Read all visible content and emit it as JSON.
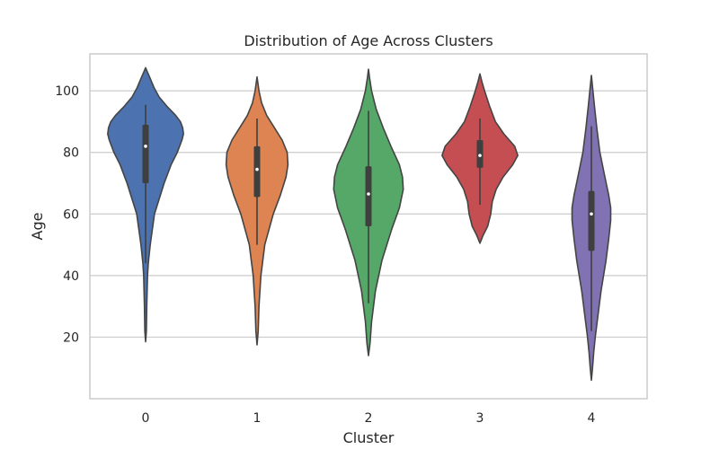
{
  "chart_data": {
    "type": "violin",
    "title": "Distribution of Age Across Clusters",
    "xlabel": "Cluster",
    "ylabel": "Age",
    "categories": [
      "0",
      "1",
      "2",
      "3",
      "4"
    ],
    "ylim": [
      0,
      112
    ],
    "yticks": [
      20,
      40,
      60,
      80,
      100
    ],
    "grid": true,
    "legend": "none",
    "violins": [
      {
        "category": "0",
        "color": "#4c72b0",
        "kde_min": 18.5,
        "kde_max": 107.5,
        "whisker_low": 44,
        "q1": 70,
        "median": 82,
        "q3": 89,
        "whisker_high": 95.5,
        "profile": [
          [
            18.5,
            0
          ],
          [
            22,
            0.02
          ],
          [
            30,
            0.03
          ],
          [
            40,
            0.05
          ],
          [
            44,
            0.07
          ],
          [
            50,
            0.12
          ],
          [
            60,
            0.23
          ],
          [
            70,
            0.48
          ],
          [
            76,
            0.66
          ],
          [
            80,
            0.82
          ],
          [
            84,
            0.94
          ],
          [
            86,
            0.98
          ],
          [
            88,
            0.96
          ],
          [
            90,
            0.9
          ],
          [
            92,
            0.78
          ],
          [
            95,
            0.55
          ],
          [
            98,
            0.35
          ],
          [
            101,
            0.22
          ],
          [
            104,
            0.12
          ],
          [
            106,
            0.05
          ],
          [
            107.5,
            0
          ]
        ]
      },
      {
        "category": "1",
        "color": "#dd8452",
        "kde_min": 17.5,
        "kde_max": 104.5,
        "whisker_low": 50,
        "q1": 65.5,
        "median": 74.5,
        "q3": 82,
        "whisker_high": 91,
        "profile": [
          [
            17.5,
            0
          ],
          [
            22,
            0.03
          ],
          [
            30,
            0.05
          ],
          [
            40,
            0.1
          ],
          [
            50,
            0.2
          ],
          [
            60,
            0.42
          ],
          [
            66,
            0.6
          ],
          [
            72,
            0.75
          ],
          [
            76,
            0.8
          ],
          [
            80,
            0.78
          ],
          [
            84,
            0.65
          ],
          [
            88,
            0.45
          ],
          [
            92,
            0.25
          ],
          [
            96,
            0.12
          ],
          [
            100,
            0.05
          ],
          [
            104.5,
            0
          ]
        ]
      },
      {
        "category": "2",
        "color": "#55a868",
        "kde_min": 14,
        "kde_max": 107,
        "whisker_low": 31,
        "q1": 56,
        "median": 66.5,
        "q3": 75.5,
        "whisker_high": 93.5,
        "profile": [
          [
            14,
            0
          ],
          [
            18,
            0.04
          ],
          [
            25,
            0.08
          ],
          [
            35,
            0.18
          ],
          [
            45,
            0.35
          ],
          [
            55,
            0.6
          ],
          [
            62,
            0.8
          ],
          [
            68,
            0.9
          ],
          [
            72,
            0.88
          ],
          [
            76,
            0.8
          ],
          [
            82,
            0.58
          ],
          [
            88,
            0.38
          ],
          [
            94,
            0.2
          ],
          [
            100,
            0.08
          ],
          [
            104,
            0.03
          ],
          [
            107,
            0
          ]
        ]
      },
      {
        "category": "3",
        "color": "#c44e52",
        "kde_min": 50.5,
        "kde_max": 105.5,
        "whisker_low": 63,
        "q1": 75,
        "median": 79,
        "q3": 84,
        "whisker_high": 91,
        "profile": [
          [
            50.5,
            0
          ],
          [
            53,
            0.08
          ],
          [
            56,
            0.2
          ],
          [
            60,
            0.28
          ],
          [
            64,
            0.32
          ],
          [
            68,
            0.42
          ],
          [
            72,
            0.6
          ],
          [
            76,
            0.85
          ],
          [
            79,
            0.98
          ],
          [
            82,
            0.9
          ],
          [
            86,
            0.62
          ],
          [
            90,
            0.4
          ],
          [
            95,
            0.25
          ],
          [
            100,
            0.12
          ],
          [
            103,
            0.05
          ],
          [
            105.5,
            0
          ]
        ]
      },
      {
        "category": "4",
        "color": "#8172b3",
        "kde_min": 6,
        "kde_max": 105,
        "whisker_low": 22,
        "q1": 48,
        "median": 60,
        "q3": 67.5,
        "whisker_high": 88.5,
        "profile": [
          [
            6,
            0
          ],
          [
            10,
            0.03
          ],
          [
            15,
            0.06
          ],
          [
            20,
            0.1
          ],
          [
            25,
            0.15
          ],
          [
            35,
            0.25
          ],
          [
            45,
            0.38
          ],
          [
            52,
            0.45
          ],
          [
            58,
            0.5
          ],
          [
            62,
            0.5
          ],
          [
            66,
            0.45
          ],
          [
            72,
            0.35
          ],
          [
            80,
            0.22
          ],
          [
            88,
            0.14
          ],
          [
            95,
            0.08
          ],
          [
            100,
            0.04
          ],
          [
            105,
            0
          ]
        ]
      }
    ]
  }
}
